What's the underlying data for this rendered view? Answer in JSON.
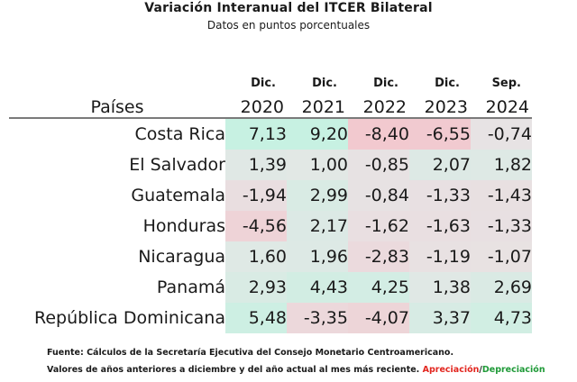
{
  "title": "Variación Interanual del ITCER Bilateral",
  "subtitle": "Datos en puntos porcentuales",
  "chart_data": {
    "type": "table",
    "row_header": "Países",
    "columns": [
      {
        "month": "Dic.",
        "year": "2020"
      },
      {
        "month": "Dic.",
        "year": "2021"
      },
      {
        "month": "Dic.",
        "year": "2022"
      },
      {
        "month": "Dic.",
        "year": "2023"
      },
      {
        "month": "Sep.",
        "year": "2024"
      }
    ],
    "rows": [
      {
        "country": "Costa Rica",
        "values": [
          "7,13",
          "9,20",
          "-8,40",
          "-6,55",
          "-0,74"
        ]
      },
      {
        "country": "El Salvador",
        "values": [
          "1,39",
          "1,00",
          "-0,85",
          "2,07",
          "1,82"
        ]
      },
      {
        "country": "Guatemala",
        "values": [
          "-1,94",
          "2,99",
          "-0,84",
          "-1,33",
          "-1,43"
        ]
      },
      {
        "country": "Honduras",
        "values": [
          "-4,56",
          "2,17",
          "-1,62",
          "-1,63",
          "-1,33"
        ]
      },
      {
        "country": "Nicaragua",
        "values": [
          "1,60",
          "1,96",
          "-2,83",
          "-1,19",
          "-1,07"
        ]
      },
      {
        "country": "Panamá",
        "values": [
          "2,93",
          "4,43",
          "4,25",
          "1,38",
          "2,69"
        ]
      },
      {
        "country": "República Dominicana",
        "values": [
          "5,48",
          "-3,35",
          "-4,07",
          "3,37",
          "4,73"
        ]
      }
    ],
    "color_scale": {
      "negative": "#f2c9cf",
      "neutral": "#e6e6e6",
      "positive": "#c7f1e2"
    }
  },
  "footer": {
    "source": "Fuente: Cálculos de la Secretaría Ejecutiva del Consejo Monetario Centroamericano.",
    "note": "Valores de años anteriores a diciembre y del año actual al mes más reciente. ",
    "appreciation": "Apreciación",
    "separator": "/",
    "depreciation": "Depreciación"
  }
}
